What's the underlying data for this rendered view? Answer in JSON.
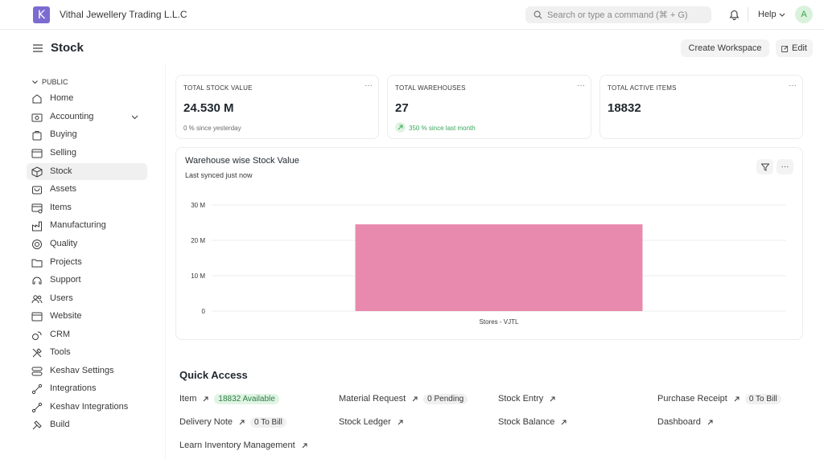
{
  "navbar": {
    "logo_letter": "K",
    "app_title": "Vithal Jewellery Trading L.L.C",
    "search_placeholder": "Search or type a command (⌘ + G)",
    "help_label": "Help",
    "avatar_initial": "A"
  },
  "header": {
    "page_title": "Stock",
    "create_workspace_label": "Create Workspace",
    "edit_label": "Edit"
  },
  "sidebar": {
    "section_label": "PUBLIC",
    "items": [
      {
        "label": "Home",
        "icon": "home-icon"
      },
      {
        "label": "Accounting",
        "icon": "accounting-icon"
      },
      {
        "label": "Buying",
        "icon": "buying-icon"
      },
      {
        "label": "Selling",
        "icon": "selling-icon"
      },
      {
        "label": "Stock",
        "icon": "stock-icon"
      },
      {
        "label": "Assets",
        "icon": "assets-icon"
      },
      {
        "label": "Items",
        "icon": "items-icon"
      },
      {
        "label": "Manufacturing",
        "icon": "manufacturing-icon"
      },
      {
        "label": "Quality",
        "icon": "quality-icon"
      },
      {
        "label": "Projects",
        "icon": "projects-icon"
      },
      {
        "label": "Support",
        "icon": "support-icon"
      },
      {
        "label": "Users",
        "icon": "users-icon"
      },
      {
        "label": "Website",
        "icon": "website-icon"
      },
      {
        "label": "CRM",
        "icon": "crm-icon"
      },
      {
        "label": "Tools",
        "icon": "tools-icon"
      },
      {
        "label": "Keshav Settings",
        "icon": "settings-icon"
      },
      {
        "label": "Integrations",
        "icon": "integrations-icon"
      },
      {
        "label": "Keshav Integrations",
        "icon": "integrations-icon"
      },
      {
        "label": "Build",
        "icon": "build-icon"
      }
    ],
    "active_item": "Stock"
  },
  "cards": [
    {
      "label": "TOTAL STOCK VALUE",
      "value": "24.530 M",
      "sub": "0 % since yesterday"
    },
    {
      "label": "TOTAL WAREHOUSES",
      "value": "27",
      "sub": "350 % since last month"
    },
    {
      "label": "TOTAL ACTIVE ITEMS",
      "value": "18832",
      "sub": ""
    }
  ],
  "card_menu_glyph": "···",
  "chart_card": {
    "title": "Warehouse wise Stock Value",
    "subtitle": "Last synced just now"
  },
  "chart_data": {
    "type": "bar",
    "title": "Warehouse wise Stock Value",
    "categories": [
      "Stores - VJTL"
    ],
    "values": [
      24530000
    ],
    "ylim": [
      0,
      30000000
    ],
    "y_ticks": [
      0,
      10000000,
      20000000,
      30000000
    ],
    "y_tick_labels": [
      "0",
      "10 M",
      "20 M",
      "30 M"
    ],
    "xlabel": "",
    "ylabel": "",
    "grid": true,
    "bar_color": "#e88aad"
  },
  "quick_access": {
    "title": "Quick Access",
    "items": [
      {
        "label": "Item",
        "badge": "18832 Available",
        "badge_style": "green"
      },
      {
        "label": "Material Request",
        "badge": "0 Pending",
        "badge_style": "gray"
      },
      {
        "label": "Stock Entry",
        "badge": "",
        "badge_style": ""
      },
      {
        "label": "Purchase Receipt",
        "badge": "0 To Bill",
        "badge_style": "gray"
      },
      {
        "label": "Delivery Note",
        "badge": "0 To Bill",
        "badge_style": "gray"
      },
      {
        "label": "Stock Ledger",
        "badge": "",
        "badge_style": ""
      },
      {
        "label": "Stock Balance",
        "badge": "",
        "badge_style": ""
      },
      {
        "label": "Dashboard",
        "badge": "",
        "badge_style": ""
      },
      {
        "label": "Learn Inventory Management",
        "badge": "",
        "badge_style": ""
      }
    ]
  },
  "colors": {
    "accent": "#7c6bd0",
    "success": "#3aa85a",
    "bar": "#e88aad"
  }
}
